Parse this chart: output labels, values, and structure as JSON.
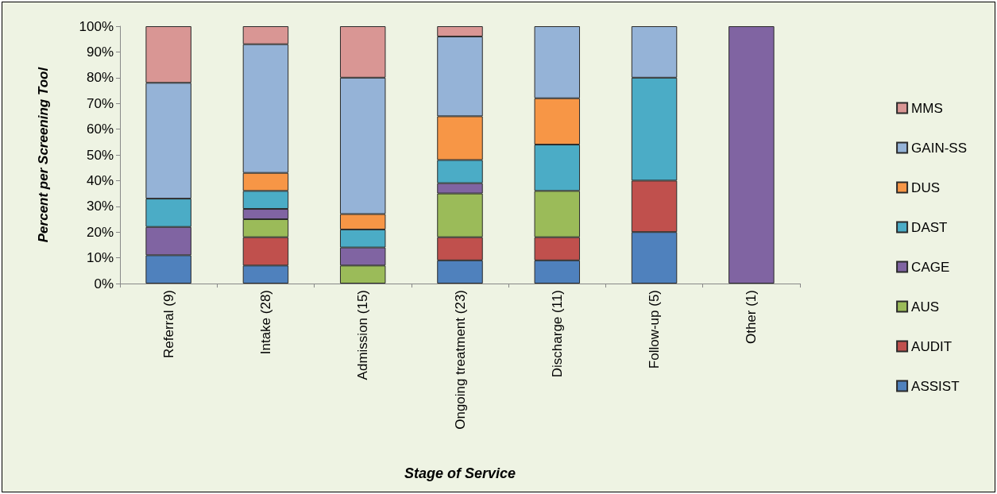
{
  "chart_data": {
    "type": "bar",
    "stacked": true,
    "xlabel": "Stage of Service",
    "ylabel": "Percent per Screening Tool",
    "categories": [
      "Referral (9)",
      "Intake (28)",
      "Admission (15)",
      "Ongoing treatment (23)",
      "Discharge (11)",
      "Follow-up (5)",
      "Other (1)"
    ],
    "series": [
      {
        "name": "ASSIST",
        "color": "#4f81bd",
        "values": [
          11,
          7,
          0,
          9,
          9,
          20,
          0
        ]
      },
      {
        "name": "AUDIT",
        "color": "#c0504d",
        "values": [
          0,
          11,
          0,
          9,
          9,
          20,
          0
        ]
      },
      {
        "name": "AUS",
        "color": "#9bbb59",
        "values": [
          0,
          7,
          7,
          17,
          18,
          0,
          0
        ]
      },
      {
        "name": "CAGE",
        "color": "#8064a2",
        "values": [
          11,
          4,
          7,
          4,
          0,
          0,
          100
        ]
      },
      {
        "name": "DAST",
        "color": "#4bacc6",
        "values": [
          11,
          7,
          7,
          9,
          18,
          40,
          0
        ]
      },
      {
        "name": "DUS",
        "color": "#f79646",
        "values": [
          0,
          7,
          6,
          17,
          18,
          0,
          0
        ]
      },
      {
        "name": "GAIN-SS",
        "color": "#95b3d7",
        "values": [
          45,
          50,
          53,
          31,
          28,
          20,
          0
        ]
      },
      {
        "name": "MMS",
        "color": "#d99694",
        "values": [
          22,
          7,
          20,
          4,
          0,
          0,
          0
        ]
      }
    ],
    "ylim": [
      0,
      100
    ],
    "yticks": [
      {
        "value": 0,
        "label": "0%"
      },
      {
        "value": 10,
        "label": "10%"
      },
      {
        "value": 20,
        "label": "20%"
      },
      {
        "value": 30,
        "label": "30%"
      },
      {
        "value": 40,
        "label": "40%"
      },
      {
        "value": 50,
        "label": "50%"
      },
      {
        "value": 60,
        "label": "60%"
      },
      {
        "value": 70,
        "label": "70%"
      },
      {
        "value": 80,
        "label": "80%"
      },
      {
        "value": 90,
        "label": "90%"
      },
      {
        "value": 100,
        "label": "100%"
      }
    ],
    "grid": false,
    "legend": "right"
  }
}
